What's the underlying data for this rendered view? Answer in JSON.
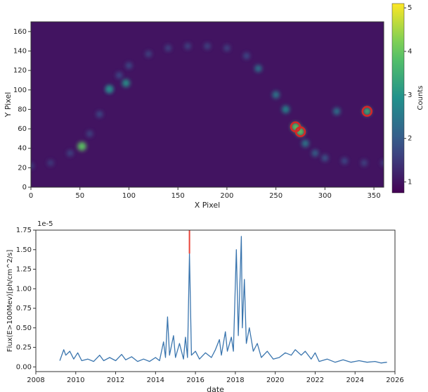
{
  "chart_data": [
    {
      "type": "heatmap",
      "xlabel": "X Pixel",
      "ylabel": "Y Pixel",
      "colorbar_label": "Counts",
      "xlim": [
        0,
        360
      ],
      "ylim": [
        0,
        170
      ],
      "xticks": [
        0,
        50,
        100,
        150,
        200,
        250,
        300,
        350
      ],
      "yticks": [
        0,
        20,
        40,
        60,
        80,
        100,
        120,
        140,
        160
      ],
      "clim": [
        0.75,
        5.1
      ],
      "cticks": [
        1,
        2,
        3,
        4,
        5
      ],
      "colormap": "viridis",
      "background": 1,
      "x": [
        0,
        20,
        40,
        52,
        60,
        70,
        80,
        80,
        90,
        97,
        100,
        120,
        140,
        160,
        180,
        200,
        220,
        232,
        250,
        260,
        270,
        275,
        280,
        290,
        300,
        312,
        320,
        340,
        343,
        360
      ],
      "y": [
        22,
        25,
        35,
        42,
        55,
        75,
        100,
        101,
        115,
        107,
        125,
        137,
        143,
        145,
        145,
        143,
        135,
        122,
        95,
        80,
        62,
        57,
        45,
        35,
        30,
        78,
        27,
        25,
        78,
        25
      ],
      "values": [
        1.6,
        1.6,
        1.7,
        4,
        1.7,
        1.8,
        1.8,
        3,
        1.8,
        3,
        1.8,
        1.7,
        1.7,
        1.7,
        1.7,
        1.7,
        1.8,
        2.5,
        2.6,
        2.8,
        4,
        4,
        2.6,
        2.2,
        2,
        2.5,
        1.8,
        1.7,
        3.5,
        1.6
      ],
      "markers": {
        "x": [
          270,
          275,
          343
        ],
        "y": [
          62,
          57,
          78
        ],
        "color": "#d62728"
      }
    },
    {
      "type": "line",
      "xlabel": "date",
      "ylabel": "Flux(E>100Mev)[ph/cm^2/s]",
      "y_offset_label": "1e-5",
      "xlim": [
        2008,
        2026
      ],
      "ylim": [
        -0.06,
        1.75
      ],
      "xticks": [
        2008,
        2010,
        2012,
        2014,
        2016,
        2018,
        2020,
        2022,
        2024,
        2026
      ],
      "yticks": [
        {
          "value": 0,
          "label": "0.00"
        },
        {
          "value": 0.25,
          "label": "0.25"
        },
        {
          "value": 0.5,
          "label": "0.50"
        },
        {
          "value": 0.75,
          "label": "0.75"
        },
        {
          "value": 1,
          "label": "1.00"
        },
        {
          "value": 1.25,
          "label": "1.25"
        },
        {
          "value": 1.5,
          "label": "1.50"
        },
        {
          "value": 1.75,
          "label": "1.75"
        }
      ],
      "x": [
        2009.2,
        2009.4,
        2009.5,
        2009.7,
        2009.9,
        2010.1,
        2010.3,
        2010.6,
        2010.9,
        2011.2,
        2011.4,
        2011.7,
        2012.0,
        2012.3,
        2012.5,
        2012.8,
        2013.1,
        2013.4,
        2013.7,
        2014.0,
        2014.2,
        2014.4,
        2014.5,
        2014.6,
        2014.7,
        2014.9,
        2015.0,
        2015.2,
        2015.4,
        2015.5,
        2015.6,
        2015.7,
        2015.8,
        2016.0,
        2016.2,
        2016.5,
        2016.8,
        2017.0,
        2017.2,
        2017.3,
        2017.5,
        2017.6,
        2017.8,
        2017.9,
        2018.05,
        2018.15,
        2018.3,
        2018.35,
        2018.45,
        2018.55,
        2018.7,
        2018.9,
        2019.1,
        2019.3,
        2019.6,
        2019.9,
        2020.2,
        2020.5,
        2020.8,
        2021.0,
        2021.3,
        2021.5,
        2021.8,
        2022.0,
        2022.2,
        2022.6,
        2023.0,
        2023.4,
        2023.8,
        2024.2,
        2024.6,
        2025.0,
        2025.3,
        2025.6
      ],
      "series": [
        {
          "color": "#3a75ae",
          "values": [
            0.08,
            0.22,
            0.15,
            0.2,
            0.1,
            0.18,
            0.08,
            0.1,
            0.07,
            0.15,
            0.08,
            0.12,
            0.08,
            0.16,
            0.09,
            0.13,
            0.07,
            0.1,
            0.07,
            0.12,
            0.08,
            0.32,
            0.12,
            0.64,
            0.15,
            0.4,
            0.12,
            0.3,
            0.1,
            0.38,
            0.12,
            1.45,
            0.15,
            0.2,
            0.1,
            0.18,
            0.12,
            0.22,
            0.35,
            0.15,
            0.45,
            0.2,
            0.38,
            0.2,
            1.5,
            0.4,
            1.67,
            0.5,
            1.12,
            0.3,
            0.5,
            0.2,
            0.3,
            0.12,
            0.2,
            0.1,
            0.12,
            0.18,
            0.15,
            0.22,
            0.15,
            0.2,
            0.1,
            0.18,
            0.07,
            0.1,
            0.06,
            0.09,
            0.06,
            0.08,
            0.06,
            0.07,
            0.05,
            0.06
          ]
        }
      ],
      "vline": {
        "x": 2015.7,
        "ymin": 1.45,
        "ymax": 1.75,
        "color": "#e8443a"
      }
    }
  ]
}
